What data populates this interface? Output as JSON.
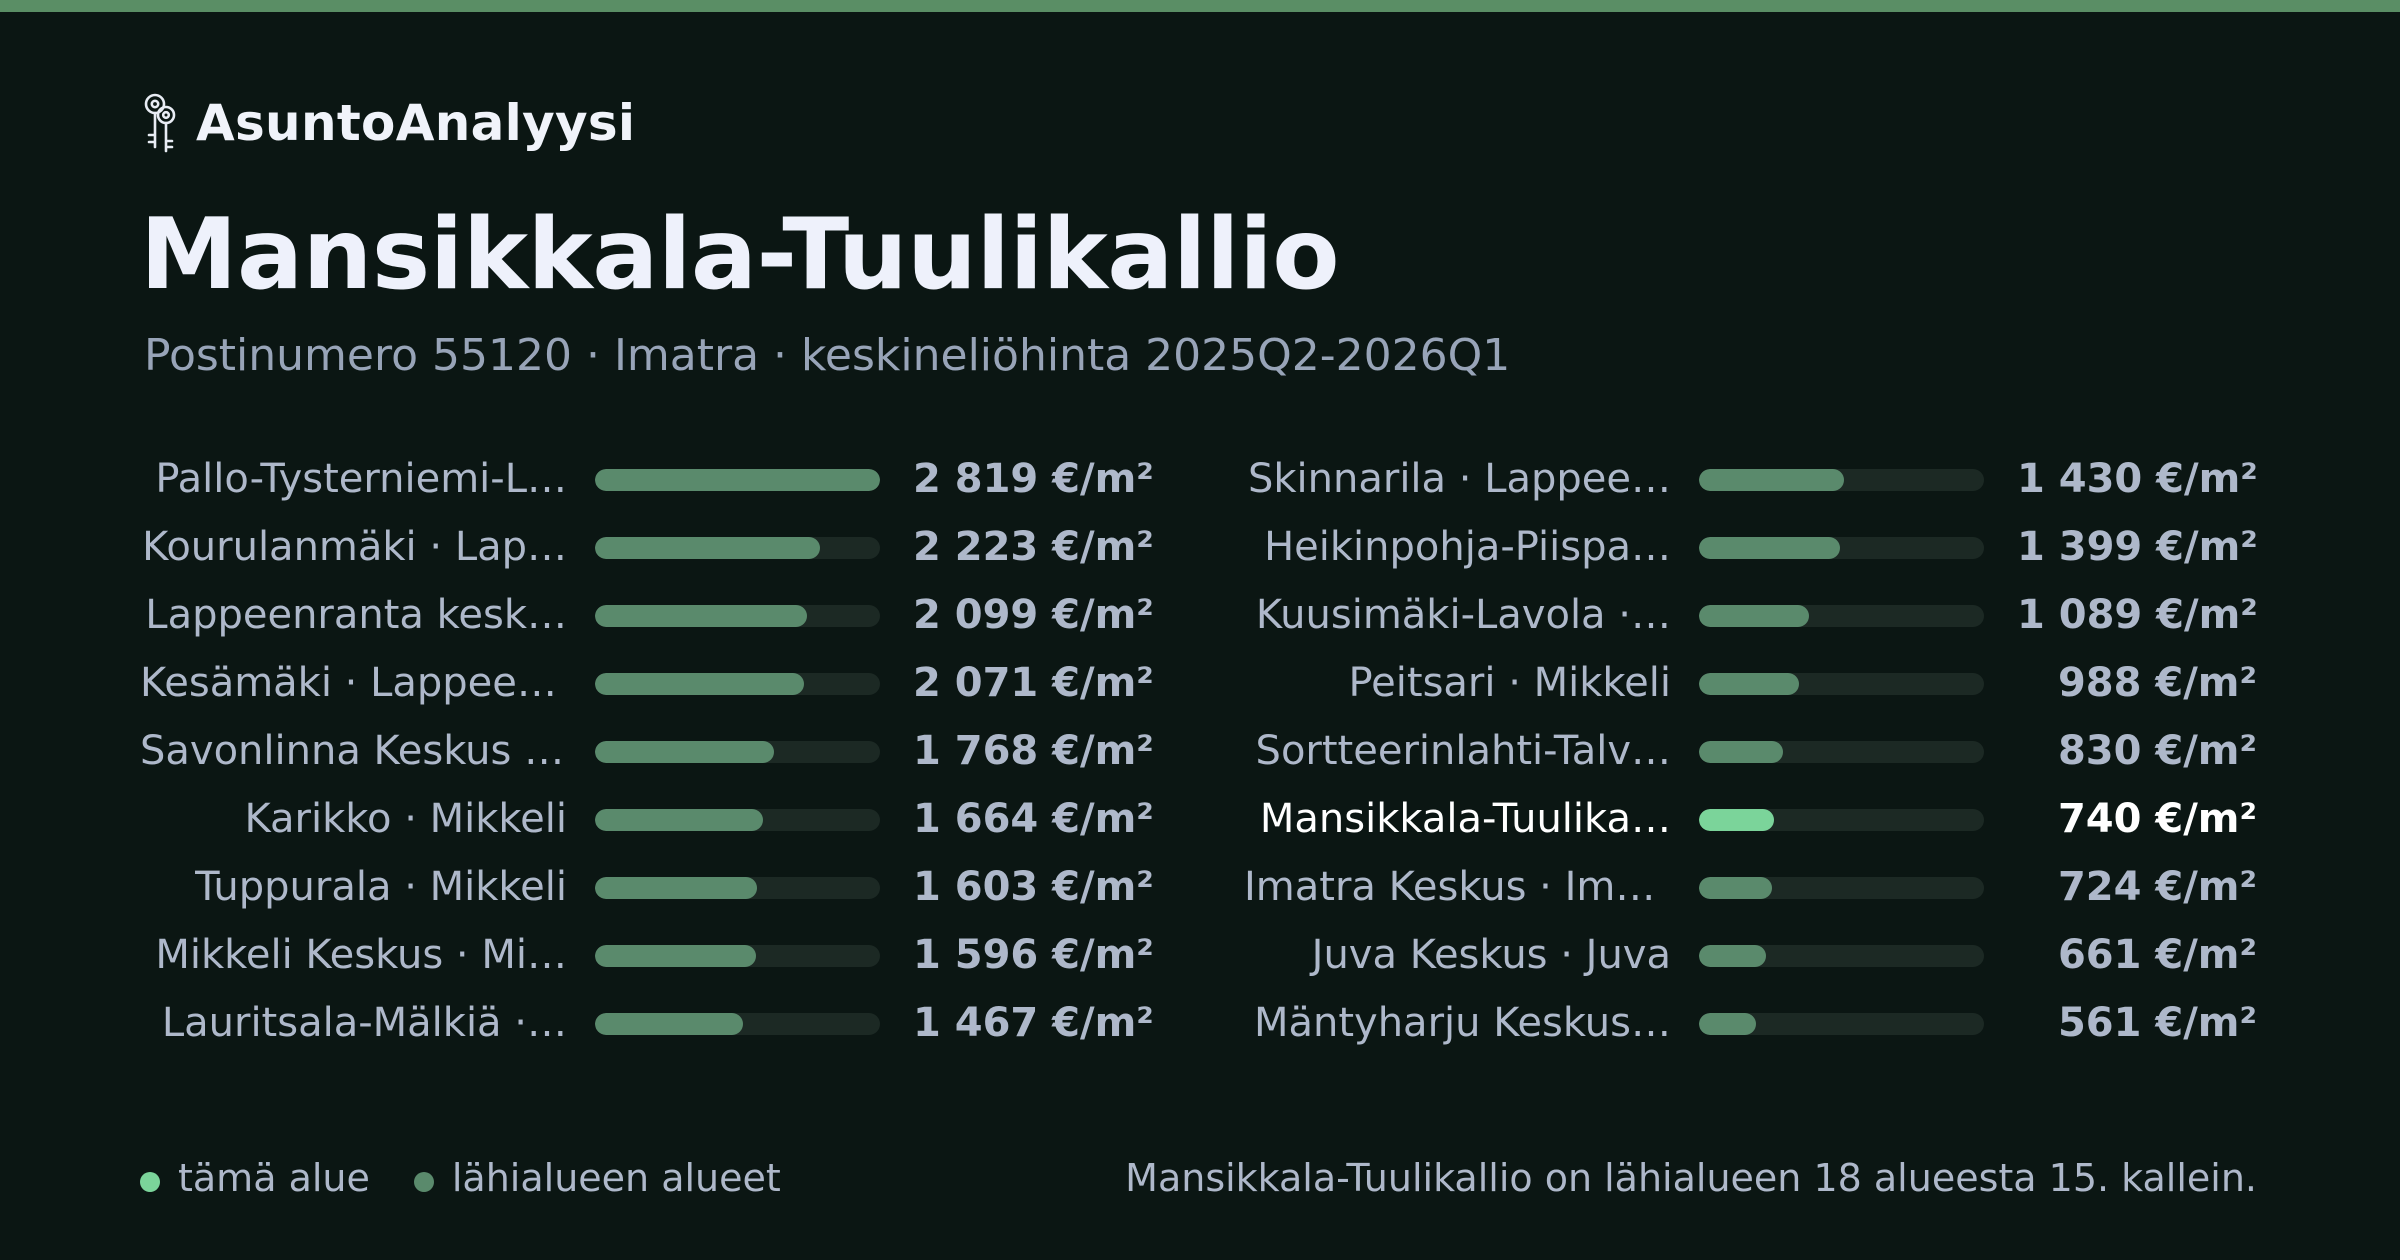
{
  "brand": {
    "name": "AsuntoAnalyysi",
    "logo_icon": "keys-icon"
  },
  "colors": {
    "accent": "#5a8e65",
    "highlight_bar": "#7bd49a",
    "neighbour_bar": "#5a8a6c",
    "background": "#0b1613"
  },
  "chart_data": {
    "type": "bar",
    "orientation": "horizontal",
    "title": "Mansikkala-Tuulikallio",
    "subtitle": "Postinumero 55120 · Imatra · keskineliöhinta 2025Q2-2026Q1",
    "unit": "€/m²",
    "highlight": "Mansikkala-Tuulika…",
    "xlim": [
      0,
      2819
    ],
    "categories": [
      "Pallo-Tysterniemi-L…",
      "Kourulanmäki · Lap…",
      "Lappeenranta kesk…",
      "Kesämäki · Lappeen…",
      "Savonlinna Keskus ·…",
      "Karikko · Mikkeli",
      "Tuppurala · Mikkeli",
      "Mikkeli Keskus · Mi…",
      "Lauritsala-Mälkiä ·…",
      "Skinnarila · Lappee…",
      "Heikinpohja-Piispa…",
      "Kuusimäki-Lavola ·…",
      "Peitsari · Mikkeli",
      "Sortteerinlahti-Talv…",
      "Mansikkala-Tuulika…",
      "Imatra Keskus · Ima…",
      "Juva Keskus · Juva",
      "Mäntyharju Keskus…"
    ],
    "values": [
      2819,
      2223,
      2099,
      2071,
      1768,
      1664,
      1603,
      1596,
      1467,
      1430,
      1399,
      1089,
      988,
      830,
      740,
      724,
      661,
      561
    ],
    "value_labels": [
      "2 819 €/m²",
      "2 223 €/m²",
      "2 099 €/m²",
      "2 071 €/m²",
      "1 768 €/m²",
      "1 664 €/m²",
      "1 603 €/m²",
      "1 596 €/m²",
      "1 467 €/m²",
      "1 430 €/m²",
      "1 399 €/m²",
      "1 089 €/m²",
      "988 €/m²",
      "830 €/m²",
      "740 €/m²",
      "724 €/m²",
      "661 €/m²",
      "561 €/m²"
    ],
    "legend": [
      {
        "label": "tämä alue",
        "color": "#7bd49a"
      },
      {
        "label": "lähialueen alueet",
        "color": "#5a8a6c"
      }
    ],
    "legend_position": "bottom-left",
    "footnote": "Mansikkala-Tuulikallio on lähialueen 18 alueesta 15. kallein."
  }
}
